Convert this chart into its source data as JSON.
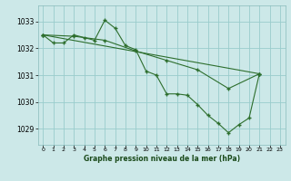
{
  "background_color": "#cce8e8",
  "grid_color": "#99cccc",
  "line_color": "#2d6e2d",
  "title": "Graphe pression niveau de la mer (hPa)",
  "xlim": [
    -0.5,
    23.5
  ],
  "ylim": [
    1028.4,
    1033.6
  ],
  "yticks": [
    1029,
    1030,
    1031,
    1032,
    1033
  ],
  "xticks": [
    0,
    1,
    2,
    3,
    4,
    5,
    6,
    7,
    8,
    9,
    10,
    11,
    12,
    13,
    14,
    15,
    16,
    17,
    18,
    19,
    20,
    21,
    22,
    23
  ],
  "line1": {
    "x": [
      0,
      1,
      2,
      3,
      4,
      5,
      6,
      7,
      8,
      9,
      10,
      11,
      12,
      13,
      14,
      15,
      16,
      17,
      18,
      19,
      20,
      21
    ],
    "y": [
      1032.5,
      1032.2,
      1032.2,
      1032.5,
      1032.4,
      1032.3,
      1033.05,
      1032.75,
      1032.1,
      1031.95,
      1031.15,
      1031.0,
      1030.3,
      1030.3,
      1030.25,
      1029.9,
      1029.5,
      1029.2,
      1028.85,
      1029.15,
      1029.4,
      1031.05
    ]
  },
  "line2": {
    "x": [
      0,
      21
    ],
    "y": [
      1032.5,
      1031.05
    ]
  },
  "line3": {
    "x": [
      0,
      3,
      6,
      9,
      12,
      15,
      18,
      21
    ],
    "y": [
      1032.5,
      1032.45,
      1032.3,
      1031.9,
      1031.55,
      1031.2,
      1030.5,
      1031.05
    ]
  }
}
